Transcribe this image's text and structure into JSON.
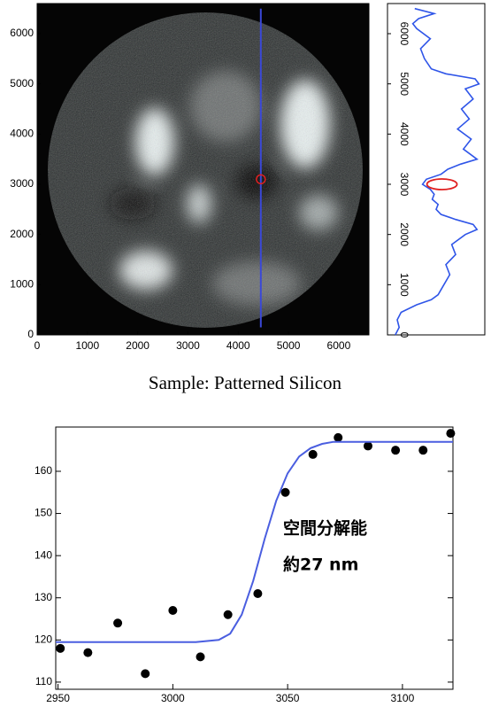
{
  "caption": "Sample: Patterned Silicon",
  "chart_data": [
    {
      "type": "image",
      "xlim": [
        0,
        6600
      ],
      "ylim": [
        0,
        6600
      ],
      "xticks": [
        0,
        1000,
        2000,
        3000,
        4000,
        5000,
        6000
      ],
      "yticks": [
        0,
        1000,
        2000,
        3000,
        4000,
        5000,
        6000
      ],
      "series": [
        {
          "color": "#3a48d8",
          "x": [
            4450,
            4450
          ],
          "values": [
            150,
            6500
          ]
        }
      ],
      "marker": {
        "x": 4450,
        "y": 3100,
        "color": "#e02020"
      }
    },
    {
      "type": "profile",
      "xlim": [
        0,
        6600
      ],
      "ylim": [
        0,
        100
      ],
      "xticks": [
        0,
        1000,
        2000,
        3000,
        4000,
        5000,
        6000
      ],
      "series": [
        {
          "color": "#2f55e8",
          "x": [
            0,
            150,
            300,
            450,
            600,
            700,
            800,
            1000,
            1200,
            1400,
            1600,
            1800,
            2000,
            2100,
            2200,
            2300,
            2400,
            2500,
            2600,
            2700,
            2800,
            2900,
            3000,
            3100,
            3200,
            3300,
            3400,
            3500,
            3700,
            3900,
            4100,
            4300,
            4500,
            4700,
            4900,
            5000,
            5100,
            5200,
            5300,
            5500,
            5700,
            5900,
            6100,
            6200,
            6300,
            6400,
            6500
          ],
          "values": [
            8,
            12,
            10,
            14,
            30,
            45,
            52,
            58,
            64,
            60,
            70,
            66,
            80,
            92,
            88,
            70,
            55,
            50,
            52,
            46,
            48,
            44,
            36,
            40,
            55,
            62,
            75,
            92,
            78,
            86,
            72,
            84,
            76,
            88,
            80,
            94,
            90,
            60,
            45,
            38,
            34,
            44,
            30,
            26,
            32,
            48,
            28
          ]
        }
      ],
      "marker": {
        "x": 3000,
        "y": 56,
        "color": "#e02020"
      }
    },
    {
      "type": "scatter",
      "xlim": [
        2949,
        3122
      ],
      "ylim": [
        108.3,
        170.5
      ],
      "xticks": [
        2950,
        3000,
        3050,
        3100
      ],
      "yticks": [
        110,
        120,
        130,
        140,
        150,
        160
      ],
      "series": [
        {
          "mode": "points",
          "color": "#000000",
          "x": [
            2951,
            2963,
            2976,
            2988,
            3000,
            3012,
            3024,
            3037,
            3049,
            3061,
            3072,
            3085,
            3097,
            3109,
            3121
          ],
          "values": [
            118,
            117,
            124,
            112,
            127,
            116,
            126,
            131,
            155,
            164,
            168,
            166,
            165,
            165,
            169
          ]
        },
        {
          "mode": "line",
          "color": "#4a5ee0",
          "x": [
            2949,
            3010,
            3020,
            3025,
            3030,
            3035,
            3040,
            3045,
            3050,
            3055,
            3060,
            3065,
            3070,
            3080,
            3122
          ],
          "values": [
            119.5,
            119.5,
            120,
            121.5,
            126,
            134,
            144,
            153,
            159.5,
            163.5,
            165.5,
            166.5,
            167,
            167,
            167
          ]
        }
      ],
      "annotations": [
        "空間分解能",
        "約27 nm"
      ]
    }
  ]
}
